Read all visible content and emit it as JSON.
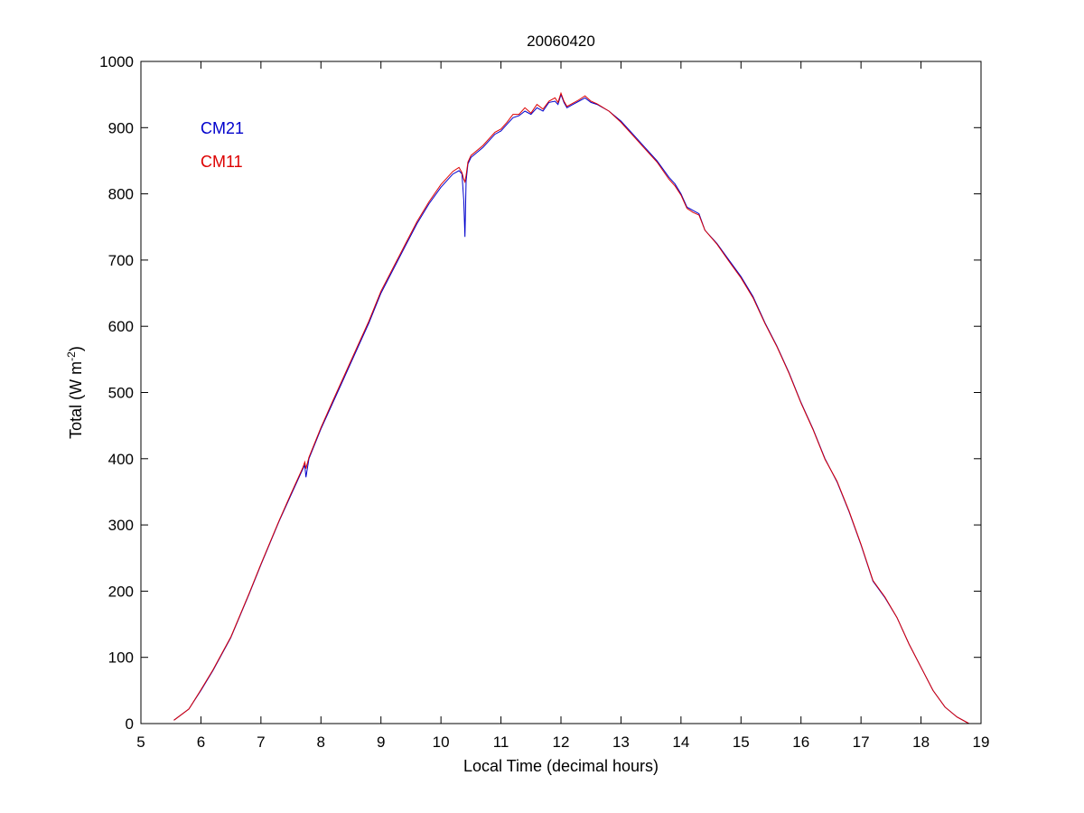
{
  "chart_data": {
    "type": "line",
    "title": "20060420",
    "xlabel": "Local Time (decimal hours)",
    "ylabel": {
      "prefix": "Total (W m",
      "exponent": "-2",
      "suffix": ")"
    },
    "xlim": [
      5,
      19
    ],
    "ylim": [
      0,
      1000
    ],
    "xticks": [
      5,
      6,
      7,
      8,
      9,
      10,
      11,
      12,
      13,
      14,
      15,
      16,
      17,
      18,
      19
    ],
    "yticks": [
      0,
      100,
      200,
      300,
      400,
      500,
      600,
      700,
      800,
      900,
      1000
    ],
    "grid": false,
    "legend": "top-left",
    "series": [
      {
        "name": "CM21",
        "color": "#0000cc",
        "x": [
          5.55,
          5.8,
          6.0,
          6.2,
          6.5,
          6.8,
          7.0,
          7.3,
          7.5,
          7.7,
          7.73,
          7.75,
          7.8,
          8.0,
          8.2,
          8.4,
          8.6,
          8.8,
          9.0,
          9.2,
          9.4,
          9.6,
          9.8,
          10.0,
          10.2,
          10.3,
          10.35,
          10.38,
          10.4,
          10.42,
          10.45,
          10.5,
          10.7,
          10.9,
          11.0,
          11.1,
          11.2,
          11.3,
          11.4,
          11.5,
          11.6,
          11.7,
          11.8,
          11.9,
          11.95,
          12.0,
          12.05,
          12.1,
          12.2,
          12.3,
          12.4,
          12.5,
          12.6,
          12.8,
          13.0,
          13.2,
          13.4,
          13.6,
          13.8,
          13.9,
          14.0,
          14.1,
          14.2,
          14.3,
          14.4,
          14.6,
          14.8,
          15.0,
          15.2,
          15.4,
          15.6,
          15.8,
          16.0,
          16.2,
          16.4,
          16.6,
          16.8,
          17.0,
          17.2,
          17.4,
          17.6,
          17.8,
          18.0,
          18.2,
          18.4,
          18.6,
          18.8
        ],
        "y": [
          5,
          22,
          50,
          80,
          130,
          195,
          240,
          305,
          345,
          385,
          390,
          372,
          400,
          445,
          485,
          525,
          565,
          605,
          650,
          685,
          720,
          755,
          785,
          810,
          830,
          835,
          830,
          790,
          735,
          820,
          845,
          855,
          870,
          890,
          895,
          905,
          915,
          918,
          925,
          920,
          930,
          925,
          938,
          940,
          935,
          950,
          938,
          930,
          935,
          940,
          945,
          938,
          935,
          925,
          910,
          890,
          870,
          850,
          825,
          815,
          800,
          780,
          775,
          770,
          745,
          725,
          700,
          675,
          645,
          605,
          570,
          530,
          485,
          445,
          400,
          365,
          320,
          270,
          215,
          190,
          160,
          120,
          85,
          50,
          25,
          10,
          0
        ]
      },
      {
        "name": "CM11",
        "color": "#dd0000",
        "x": [
          5.55,
          5.8,
          6.0,
          6.2,
          6.5,
          6.8,
          7.0,
          7.3,
          7.5,
          7.7,
          7.73,
          7.75,
          7.8,
          8.0,
          8.2,
          8.4,
          8.6,
          8.8,
          9.0,
          9.2,
          9.4,
          9.6,
          9.8,
          10.0,
          10.2,
          10.3,
          10.35,
          10.38,
          10.4,
          10.42,
          10.45,
          10.5,
          10.7,
          10.9,
          11.0,
          11.1,
          11.2,
          11.3,
          11.4,
          11.5,
          11.6,
          11.7,
          11.8,
          11.9,
          11.95,
          12.0,
          12.05,
          12.1,
          12.2,
          12.3,
          12.4,
          12.5,
          12.6,
          12.8,
          13.0,
          13.2,
          13.4,
          13.6,
          13.8,
          13.9,
          14.0,
          14.1,
          14.2,
          14.3,
          14.4,
          14.6,
          14.8,
          15.0,
          15.2,
          15.4,
          15.6,
          15.8,
          16.0,
          16.2,
          16.4,
          16.6,
          16.8,
          17.0,
          17.2,
          17.4,
          17.6,
          17.8,
          18.0,
          18.2,
          18.4,
          18.6,
          18.8
        ],
        "y": [
          5,
          22,
          51,
          81,
          131,
          196,
          241,
          306,
          347,
          387,
          395,
          385,
          402,
          447,
          488,
          528,
          568,
          608,
          653,
          688,
          723,
          758,
          788,
          814,
          834,
          840,
          832,
          822,
          818,
          828,
          848,
          858,
          873,
          893,
          898,
          908,
          920,
          920,
          930,
          922,
          935,
          928,
          940,
          945,
          938,
          952,
          940,
          932,
          937,
          942,
          948,
          940,
          936,
          925,
          908,
          888,
          868,
          848,
          822,
          812,
          798,
          778,
          772,
          768,
          745,
          724,
          698,
          673,
          643,
          604,
          569,
          529,
          484,
          444,
          399,
          366,
          321,
          271,
          216,
          191,
          160,
          120,
          85,
          50,
          25,
          10,
          0
        ]
      }
    ]
  }
}
